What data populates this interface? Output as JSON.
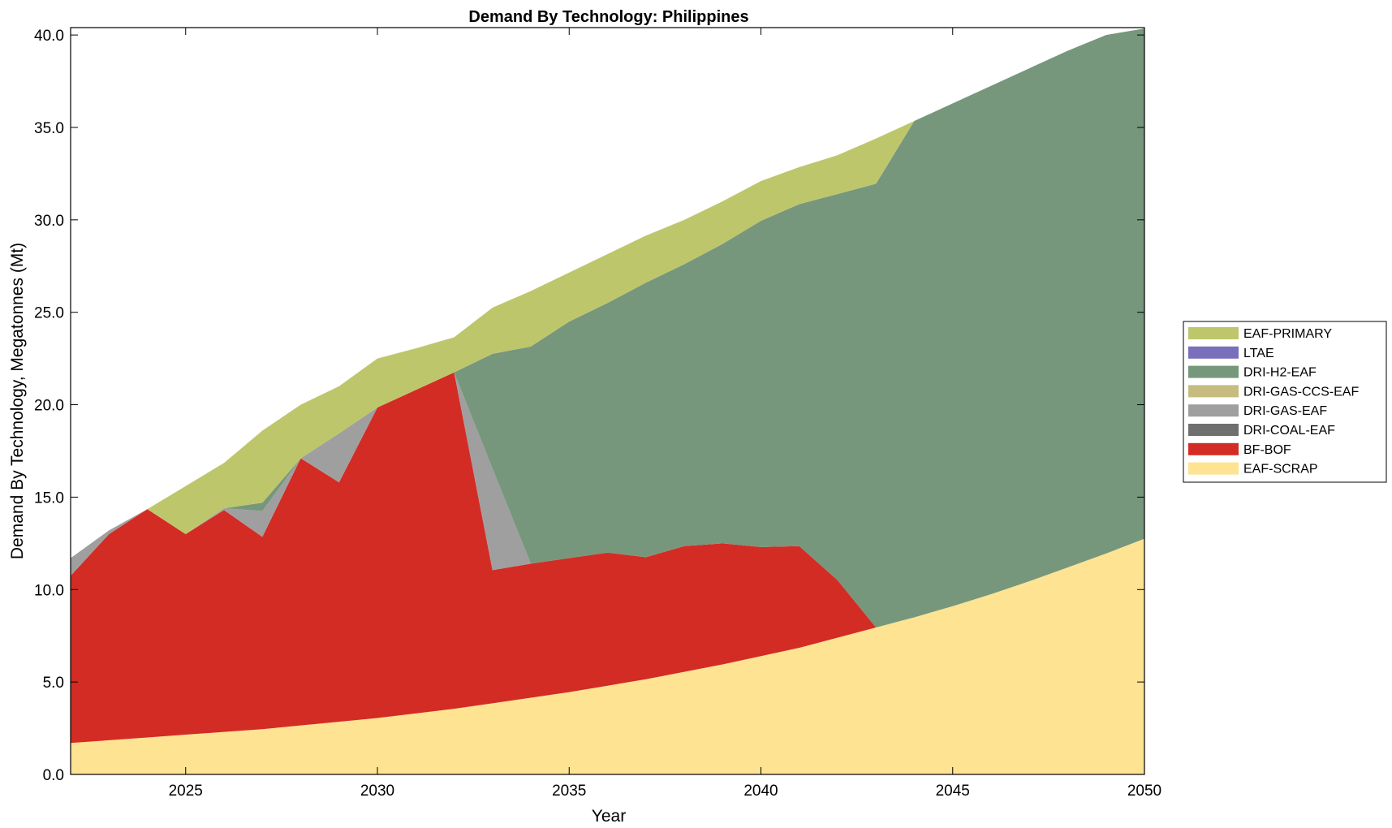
{
  "chart_data": {
    "type": "area",
    "stacked": true,
    "title": "Demand By Technology: Philippines",
    "xlabel": "Year",
    "ylabel": "Demand By Technology, Megatonnes (Mt)",
    "xlim": [
      2022,
      2050
    ],
    "ylim": [
      0,
      40.4
    ],
    "xticks": [
      2025,
      2030,
      2035,
      2040,
      2045,
      2050
    ],
    "xtick_labels": [
      "2025",
      "2030",
      "2035",
      "2040",
      "2045",
      "2050"
    ],
    "yticks": [
      0,
      5,
      10,
      15,
      20,
      25,
      30,
      35,
      40
    ],
    "ytick_labels": [
      "0.0",
      "5.0",
      "10.0",
      "15.0",
      "20.0",
      "25.0",
      "30.0",
      "35.0",
      "40.0"
    ],
    "grid": false,
    "legend_position": "right",
    "x": [
      2022,
      2023,
      2024,
      2025,
      2026,
      2027,
      2028,
      2029,
      2030,
      2031,
      2032,
      2033,
      2034,
      2035,
      2036,
      2037,
      2038,
      2039,
      2040,
      2041,
      2042,
      2043,
      2044,
      2045,
      2046,
      2047,
      2048,
      2049,
      2050
    ],
    "series": [
      {
        "name": "EAF-SCRAP",
        "color": "#fde392",
        "values": [
          1.7,
          1.85,
          2.0,
          2.15,
          2.3,
          2.45,
          2.65,
          2.85,
          3.05,
          3.3,
          3.55,
          3.85,
          4.15,
          4.45,
          4.8,
          5.15,
          5.55,
          5.95,
          6.4,
          6.85,
          7.4,
          7.95,
          8.5,
          9.1,
          9.75,
          10.45,
          11.2,
          11.95,
          12.75
        ]
      },
      {
        "name": "BF-BOF",
        "color": "#d32c24",
        "values": [
          9.05,
          11.15,
          12.35,
          10.85,
          12.0,
          10.4,
          14.45,
          12.95,
          16.8,
          17.5,
          18.2,
          7.2,
          7.25,
          7.25,
          7.2,
          6.6,
          6.8,
          6.55,
          5.9,
          5.5,
          3.1,
          0,
          0,
          0,
          0,
          0,
          0,
          0,
          0
        ]
      },
      {
        "name": "DRI-COAL-EAF",
        "color": "#6f6f6f",
        "values": [
          0,
          0,
          0,
          0,
          0,
          0,
          0,
          0,
          0,
          0,
          0,
          0,
          0,
          0,
          0,
          0,
          0,
          0,
          0,
          0,
          0,
          0,
          0,
          0,
          0,
          0,
          0,
          0,
          0
        ]
      },
      {
        "name": "DRI-GAS-EAF",
        "color": "#9f9f9f",
        "values": [
          0.95,
          0.2,
          0,
          0,
          0.1,
          1.4,
          0,
          2.65,
          0,
          0,
          0,
          5.5,
          0,
          0,
          0,
          0,
          0,
          0,
          0,
          0,
          0,
          0,
          0,
          0,
          0,
          0,
          0,
          0,
          0
        ]
      },
      {
        "name": "DRI-GAS-CCS-EAF",
        "color": "#c6bc7f",
        "values": [
          0,
          0,
          0,
          0,
          0,
          0,
          0,
          0,
          0,
          0,
          0,
          0,
          0,
          0,
          0,
          0,
          0,
          0,
          0,
          0,
          0,
          0,
          0,
          0,
          0,
          0,
          0,
          0,
          0
        ]
      },
      {
        "name": "DRI-H2-EAF",
        "color": "#76977c",
        "values": [
          0,
          0,
          0,
          0,
          0,
          0.45,
          0,
          0,
          0,
          0,
          0,
          6.2,
          11.75,
          12.8,
          13.5,
          14.85,
          15.25,
          16.2,
          17.65,
          18.5,
          20.9,
          24.0,
          26.85,
          27.2,
          27.5,
          27.75,
          27.95,
          28.05,
          27.6
        ]
      },
      {
        "name": "LTAE",
        "color": "#7a6fbd",
        "values": [
          0,
          0,
          0,
          0,
          0,
          0,
          0,
          0,
          0,
          0,
          0,
          0,
          0,
          0,
          0,
          0,
          0,
          0,
          0,
          0,
          0,
          0,
          0,
          0,
          0,
          0,
          0,
          0,
          0
        ]
      },
      {
        "name": "EAF-PRIMARY",
        "color": "#bec66c",
        "values": [
          0,
          0,
          0,
          2.6,
          2.45,
          3.9,
          2.9,
          2.55,
          2.65,
          2.25,
          1.9,
          2.5,
          3.0,
          2.65,
          2.65,
          2.55,
          2.4,
          2.3,
          2.15,
          2.0,
          2.1,
          2.45,
          0,
          0,
          0,
          0,
          0,
          0,
          0
        ]
      }
    ],
    "legend_order": [
      "EAF-PRIMARY",
      "LTAE",
      "DRI-H2-EAF",
      "DRI-GAS-CCS-EAF",
      "DRI-GAS-EAF",
      "DRI-COAL-EAF",
      "BF-BOF",
      "EAF-SCRAP"
    ]
  }
}
